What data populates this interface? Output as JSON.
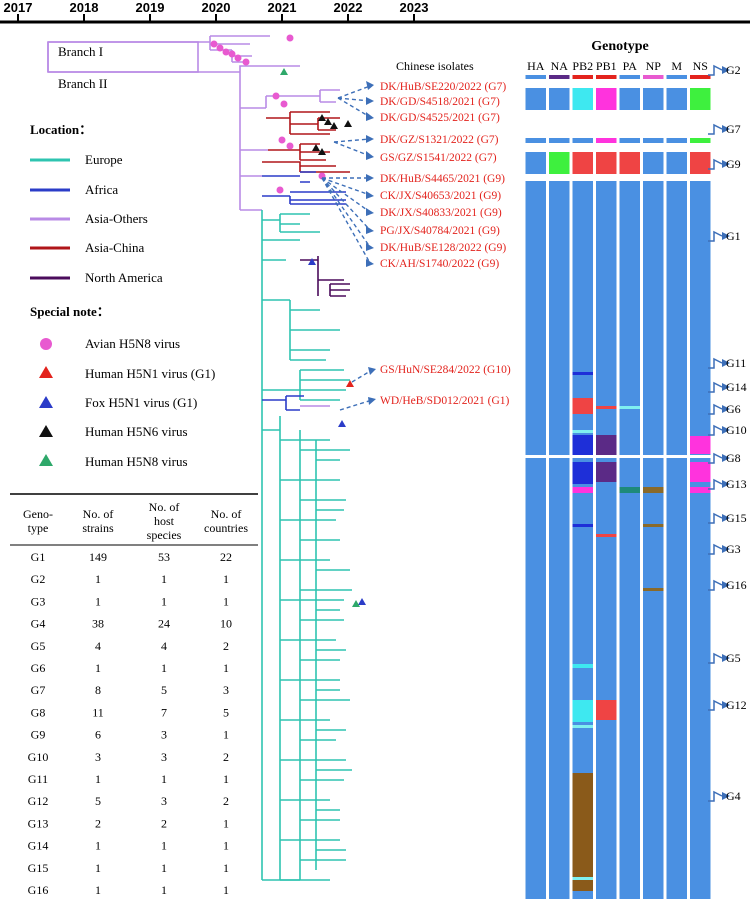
{
  "timeline": {
    "years": [
      "2017",
      "2018",
      "2019",
      "2020",
      "2021",
      "2022",
      "2023"
    ]
  },
  "branches": {
    "branch1": "Branch I",
    "branch2": "Branch II"
  },
  "legend": {
    "location_title": "Location：",
    "locations": [
      {
        "name": "Europe",
        "color": "#2ec4b0"
      },
      {
        "name": "Africa",
        "color": "#2b3cc8"
      },
      {
        "name": "Asia-Others",
        "color": "#b98be6"
      },
      {
        "name": "Asia-China",
        "color": "#b0161a"
      },
      {
        "name": "North America",
        "color": "#4b0c5c"
      }
    ],
    "special_title": "Special note：",
    "specials": [
      {
        "name": "Avian H5N8 virus",
        "shape": "circle",
        "color": "#e85ad0"
      },
      {
        "name": "Human H5N1 virus (G1)",
        "shape": "triangle",
        "color": "#e3231d"
      },
      {
        "name": "Fox H5N1 virus (G1)",
        "shape": "triangle",
        "color": "#2b3cc8"
      },
      {
        "name": "Human H5N6 virus",
        "shape": "triangle",
        "color": "#111111"
      },
      {
        "name": "Human H5N8 virus",
        "shape": "triangle",
        "color": "#2ea86a"
      }
    ]
  },
  "table": {
    "headers": [
      "Geno-\ntype",
      "No. of\nstrains",
      "No. of\nhost\nspecies",
      "No. of\ncountries"
    ],
    "rows": [
      [
        "G1",
        "149",
        "53",
        "22"
      ],
      [
        "G2",
        "1",
        "1",
        "1"
      ],
      [
        "G3",
        "1",
        "1",
        "1"
      ],
      [
        "G4",
        "38",
        "24",
        "10"
      ],
      [
        "G5",
        "4",
        "4",
        "2"
      ],
      [
        "G6",
        "1",
        "1",
        "1"
      ],
      [
        "G7",
        "8",
        "5",
        "3"
      ],
      [
        "G8",
        "11",
        "7",
        "5"
      ],
      [
        "G9",
        "6",
        "3",
        "1"
      ],
      [
        "G10",
        "3",
        "3",
        "2"
      ],
      [
        "G11",
        "1",
        "1",
        "1"
      ],
      [
        "G12",
        "5",
        "3",
        "2"
      ],
      [
        "G13",
        "2",
        "2",
        "1"
      ],
      [
        "G14",
        "1",
        "1",
        "1"
      ],
      [
        "G15",
        "1",
        "1",
        "1"
      ],
      [
        "G16",
        "1",
        "1",
        "1"
      ]
    ]
  },
  "isolates": {
    "title": "Chinese isolates",
    "group_top": [
      "DK/HuB/SE220/2022 (G7)",
      "DK/GD/S4518/2021 (G7)",
      "DK/GD/S4525/2021 (G7)",
      "DK/GZ/S1321/2022 (G7)",
      "GS/GZ/S1541/2022 (G7)"
    ],
    "group_g9": [
      "DK/HuB/S4465/2021 (G9)",
      "CK/JX/S40653/2021 (G9)",
      "DK/JX/S40833/2021 (G9)",
      "PG/JX/S40784/2021 (G9)",
      "DK/HuB/SE128/2022 (G9)",
      "CK/AH/S1740/2022 (G9)"
    ],
    "mid": [
      "GS/HuN/SE284/2022 (G10)",
      "WD/HeB/SD012/2021 (G1)"
    ],
    "color": "#e3231d"
  },
  "genotype_panel": {
    "title": "Genotype",
    "segments": [
      "HA",
      "NA",
      "PB2",
      "PB1",
      "PA",
      "NP",
      "M",
      "NS"
    ],
    "base_color": "#4a90e2",
    "labels": [
      "G2",
      "G7",
      "G9",
      "G1",
      "G11",
      "G14",
      "G6",
      "G10",
      "G8",
      "G13",
      "G15",
      "G3",
      "G16",
      "G5",
      "G12",
      "G4"
    ]
  }
}
